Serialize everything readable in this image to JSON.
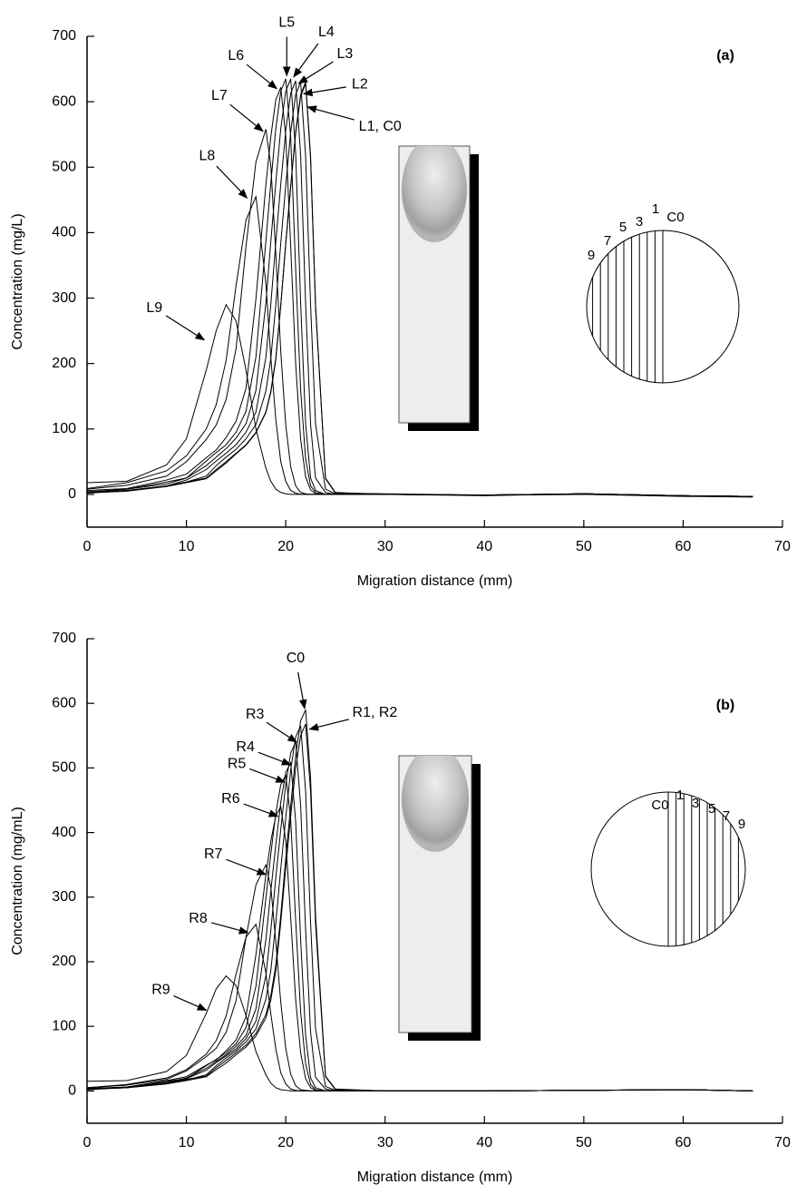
{
  "chart_data": [
    {
      "type": "line",
      "panel_label": "(a)",
      "x_label": "Migration distance (mm)",
      "y_label": "Concentration (mg/L)",
      "color": "#000000",
      "xlim": [
        0,
        70
      ],
      "xticks": [
        0,
        10,
        20,
        30,
        40,
        50,
        60,
        70
      ],
      "ylim": [
        -50,
        700
      ],
      "yticks": [
        0,
        100,
        200,
        300,
        400,
        500,
        600,
        700
      ],
      "x": [
        0,
        4,
        8,
        10,
        12,
        13,
        14,
        15,
        16,
        17,
        18,
        18.5,
        19,
        19.5,
        20,
        20.5,
        21,
        21.5,
        22,
        22.5,
        23,
        24,
        25,
        30,
        40,
        50,
        60,
        67
      ],
      "series": [
        {
          "values": [
            3,
            6,
            13,
            19,
            25,
            38,
            50,
            63,
            76,
            95,
            126,
            158,
            208,
            290,
            384,
            472,
            554,
            611,
            630,
            517,
            290,
            25,
            3,
            0,
            -2,
            1,
            -2,
            -3
          ]
        },
        {
          "values": [
            2,
            5,
            12,
            18,
            24,
            36,
            48,
            62,
            75,
            94,
            125,
            156,
            206,
            288,
            382,
            470,
            552,
            608,
            628,
            512,
            286,
            24,
            2,
            1,
            -1,
            0,
            -3,
            -4
          ]
        },
        {
          "values": [
            3,
            6,
            13,
            19,
            28,
            44,
            57,
            69,
            85,
            107,
            158,
            208,
            290,
            384,
            472,
            554,
            611,
            630,
            517,
            290,
            107,
            8,
            1,
            0,
            -1,
            0,
            -2,
            -3
          ]
        },
        {
          "values": [
            3,
            6,
            13,
            22,
            38,
            51,
            63,
            76,
            95,
            126,
            209,
            291,
            386,
            474,
            556,
            613,
            632,
            518,
            291,
            107,
            25,
            3,
            0,
            0,
            -1,
            1,
            -2,
            -3
          ]
        },
        {
          "values": [
            3,
            8,
            16,
            25,
            44,
            57,
            70,
            86,
            108,
            159,
            292,
            387,
            476,
            559,
            616,
            635,
            521,
            292,
            108,
            25,
            6,
            0,
            0,
            0,
            -1,
            1,
            -2,
            -3
          ]
        },
        {
          "values": [
            4,
            8,
            19,
            25,
            51,
            64,
            76,
            95,
            127,
            210,
            387,
            476,
            559,
            616,
            635,
            546,
            343,
            159,
            54,
            13,
            3,
            0,
            0,
            0,
            -1,
            1,
            -2,
            -3
          ]
        },
        {
          "values": [
            6,
            9,
            22,
            31,
            56,
            68,
            87,
            112,
            162,
            299,
            473,
            547,
            603,
            622,
            547,
            379,
            199,
            84,
            27,
            7,
            1,
            0,
            0,
            0,
            -1,
            1,
            -2,
            -3
          ]
        },
        {
          "values": [
            8,
            14,
            28,
            50,
            84,
            106,
            145,
            223,
            379,
            508,
            558,
            502,
            368,
            218,
            106,
            42,
            13,
            3,
            1,
            0,
            0,
            0,
            0,
            0,
            -1,
            1,
            -2,
            -3
          ]
        },
        {
          "values": [
            9,
            18,
            36,
            59,
            100,
            137,
            205,
            319,
            419,
            455,
            323,
            209,
            114,
            50,
            20,
            6,
            2,
            0,
            0,
            0,
            0,
            0,
            0,
            0,
            -1,
            1,
            -2,
            -3
          ]
        },
        {
          "values": [
            18,
            20,
            45,
            85,
            190,
            250,
            290,
            265,
            190,
            100,
            40,
            20,
            8,
            3,
            1,
            0,
            0,
            0,
            0,
            0,
            0,
            0,
            0,
            0,
            -1,
            1,
            -2,
            -3
          ]
        }
      ],
      "annotations": [
        {
          "text": "L9",
          "x": 11.8,
          "y": 236
        },
        {
          "text": "L8",
          "x": 16.1,
          "y": 453
        },
        {
          "text": "L7",
          "x": 17.7,
          "y": 555
        },
        {
          "text": "L6",
          "x": 19.1,
          "y": 620
        },
        {
          "text": "L5",
          "x": 20.1,
          "y": 640
        },
        {
          "text": "L4",
          "x": 20.8,
          "y": 638
        },
        {
          "text": "L3",
          "x": 21.3,
          "y": 628
        },
        {
          "text": "L2",
          "x": 21.8,
          "y": 612
        },
        {
          "text": "L1, C0",
          "x": 22.2,
          "y": 592
        }
      ],
      "inset_labels": [
        "9",
        "7",
        "5",
        "3",
        "1",
        "C0"
      ]
    },
    {
      "type": "line",
      "panel_label": "(b)",
      "x_label": "Migration distance (mm)",
      "y_label": "Concentration (mg/mL)",
      "color": "#000000",
      "xlim": [
        0,
        70
      ],
      "xticks": [
        0,
        10,
        20,
        30,
        40,
        50,
        60,
        70
      ],
      "ylim": [
        -50,
        700
      ],
      "yticks": [
        0,
        100,
        200,
        300,
        400,
        500,
        600,
        700
      ],
      "x": [
        0,
        4,
        8,
        10,
        12,
        13,
        14,
        15,
        16,
        17,
        18,
        18.5,
        19,
        19.5,
        20,
        20.5,
        21,
        21.5,
        22,
        22.5,
        23,
        24,
        25,
        30,
        40,
        50,
        60,
        67
      ],
      "series": [
        {
          "values": [
            3,
            6,
            12,
            18,
            23,
            36,
            47,
            59,
            71,
            89,
            118,
            148,
            195,
            272,
            360,
            442,
            519,
            573,
            590,
            484,
            272,
            23,
            3,
            0,
            0,
            1,
            2,
            0
          ]
        },
        {
          "values": [
            2,
            5,
            11,
            16,
            22,
            33,
            43,
            56,
            68,
            85,
            113,
            141,
            186,
            261,
            346,
            425,
            500,
            550,
            568,
            463,
            259,
            22,
            2,
            0,
            0,
            1,
            2,
            0
          ]
        },
        {
          "values": [
            3,
            5,
            12,
            17,
            25,
            39,
            51,
            62,
            76,
            96,
            142,
            187,
            260,
            344,
            423,
            497,
            548,
            565,
            464,
            260,
            96,
            7,
            1,
            0,
            0,
            1,
            2,
            0
          ]
        },
        {
          "values": [
            3,
            5,
            11,
            19,
            32,
            44,
            54,
            65,
            81,
            108,
            178,
            249,
            330,
            405,
            475,
            523,
            540,
            442,
            249,
            91,
            21,
            3,
            0,
            0,
            0,
            1,
            2,
            0
          ]
        },
        {
          "values": [
            2,
            6,
            13,
            20,
            35,
            46,
            56,
            69,
            86,
            127,
            234,
            310,
            381,
            447,
            493,
            508,
            417,
            234,
            86,
            20,
            5,
            0,
            0,
            0,
            0,
            1,
            2,
            0
          ]
        },
        {
          "values": [
            3,
            6,
            15,
            19,
            39,
            49,
            59,
            73,
            98,
            162,
            298,
            367,
            430,
            474,
            489,
            420,
            264,
            122,
            42,
            10,
            2,
            0,
            0,
            0,
            0,
            1,
            2,
            0
          ]
        },
        {
          "values": [
            4,
            6,
            16,
            22,
            40,
            48,
            62,
            79,
            115,
            211,
            334,
            387,
            426,
            440,
            387,
            268,
            141,
            59,
            19,
            5,
            1,
            0,
            0,
            0,
            0,
            1,
            2,
            0
          ]
        },
        {
          "values": [
            5,
            9,
            18,
            31,
            53,
            66,
            91,
            140,
            238,
            319,
            350,
            315,
            231,
            137,
            66,
            26,
            8,
            2,
            1,
            0,
            0,
            0,
            0,
            0,
            0,
            1,
            2,
            0
          ]
        },
        {
          "values": [
            5,
            10,
            20,
            33,
            57,
            78,
            116,
            181,
            238,
            258,
            183,
            119,
            65,
            28,
            11,
            3,
            1,
            0,
            0,
            0,
            0,
            0,
            0,
            0,
            0,
            1,
            2,
            0
          ]
        },
        {
          "values": [
            15,
            16,
            30,
            55,
            120,
            158,
            178,
            163,
            117,
            61,
            25,
            12,
            5,
            2,
            1,
            0,
            0,
            0,
            0,
            0,
            0,
            0,
            0,
            0,
            0,
            1,
            2,
            0
          ]
        }
      ],
      "annotations": [
        {
          "text": "R9",
          "x": 12,
          "y": 125
        },
        {
          "text": "R8",
          "x": 16.2,
          "y": 245
        },
        {
          "text": "R7",
          "x": 18,
          "y": 335
        },
        {
          "text": "R6",
          "x": 19.2,
          "y": 425
        },
        {
          "text": "R5",
          "x": 19.9,
          "y": 478
        },
        {
          "text": "R4",
          "x": 20.5,
          "y": 505
        },
        {
          "text": "R3",
          "x": 21.1,
          "y": 540
        },
        {
          "text": "C0",
          "x": 21.9,
          "y": 592
        },
        {
          "text": "R1, R2",
          "x": 22.4,
          "y": 560
        }
      ],
      "inset_labels": [
        "C0",
        "1",
        "3",
        "5",
        "7",
        "9"
      ]
    }
  ]
}
